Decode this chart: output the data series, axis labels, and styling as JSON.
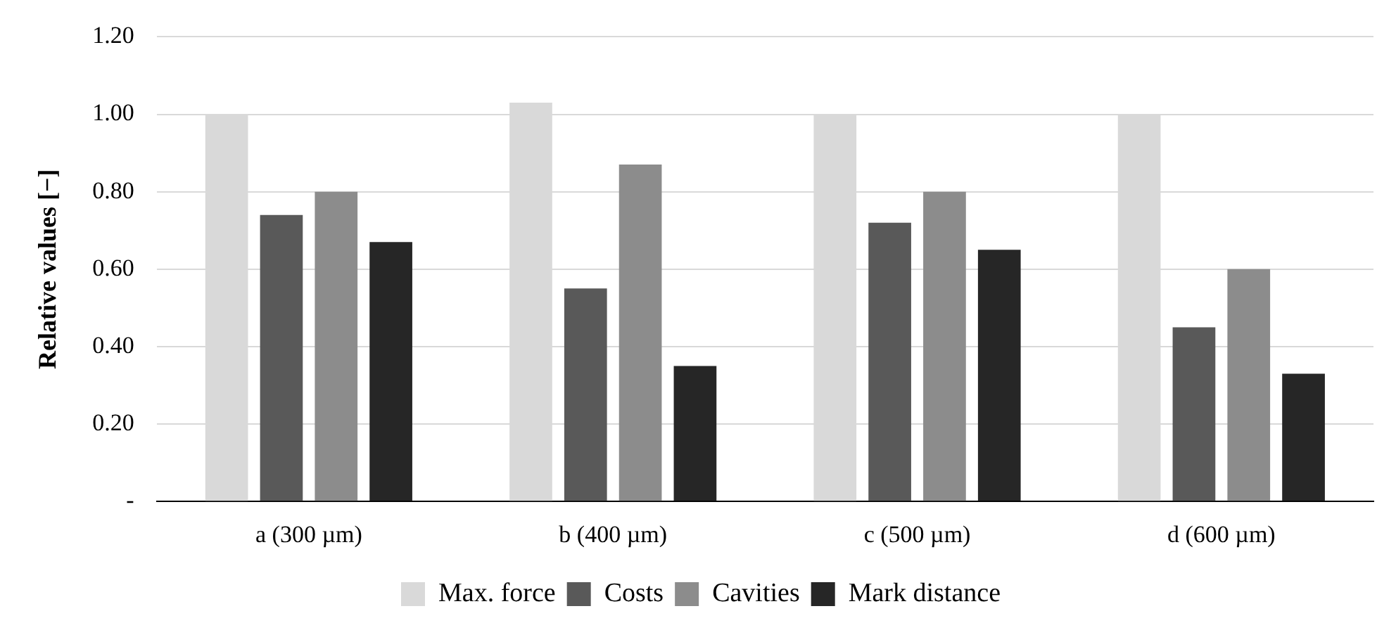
{
  "chart_data": {
    "type": "bar",
    "ylabel": "Relative values [−]",
    "categories": [
      "a (300 µm)",
      "b (400 µm)",
      "c (500 µm)",
      "d (600 µm)"
    ],
    "series": [
      {
        "name": "Max. force",
        "color": "#d9d9d9",
        "values": [
          1.0,
          1.03,
          1.0,
          1.0
        ]
      },
      {
        "name": "Costs",
        "color": "#595959",
        "values": [
          0.74,
          0.55,
          0.72,
          0.45
        ]
      },
      {
        "name": "Cavities",
        "color": "#8c8c8c",
        "values": [
          0.8,
          0.87,
          0.8,
          0.6
        ]
      },
      {
        "name": "Mark distance",
        "color": "#262626",
        "values": [
          0.67,
          0.35,
          0.65,
          0.33
        ]
      }
    ],
    "ylim": [
      0,
      1.2
    ],
    "yticks": [
      {
        "value": 0,
        "label": "-"
      },
      {
        "value": 0.2,
        "label": "0.20"
      },
      {
        "value": 0.4,
        "label": "0.40"
      },
      {
        "value": 0.6,
        "label": "0.60"
      },
      {
        "value": 0.8,
        "label": "0.80"
      },
      {
        "value": 1.0,
        "label": "1.00"
      },
      {
        "value": 1.2,
        "label": "1.20"
      }
    ],
    "grid": "y",
    "legend": "bottom"
  }
}
